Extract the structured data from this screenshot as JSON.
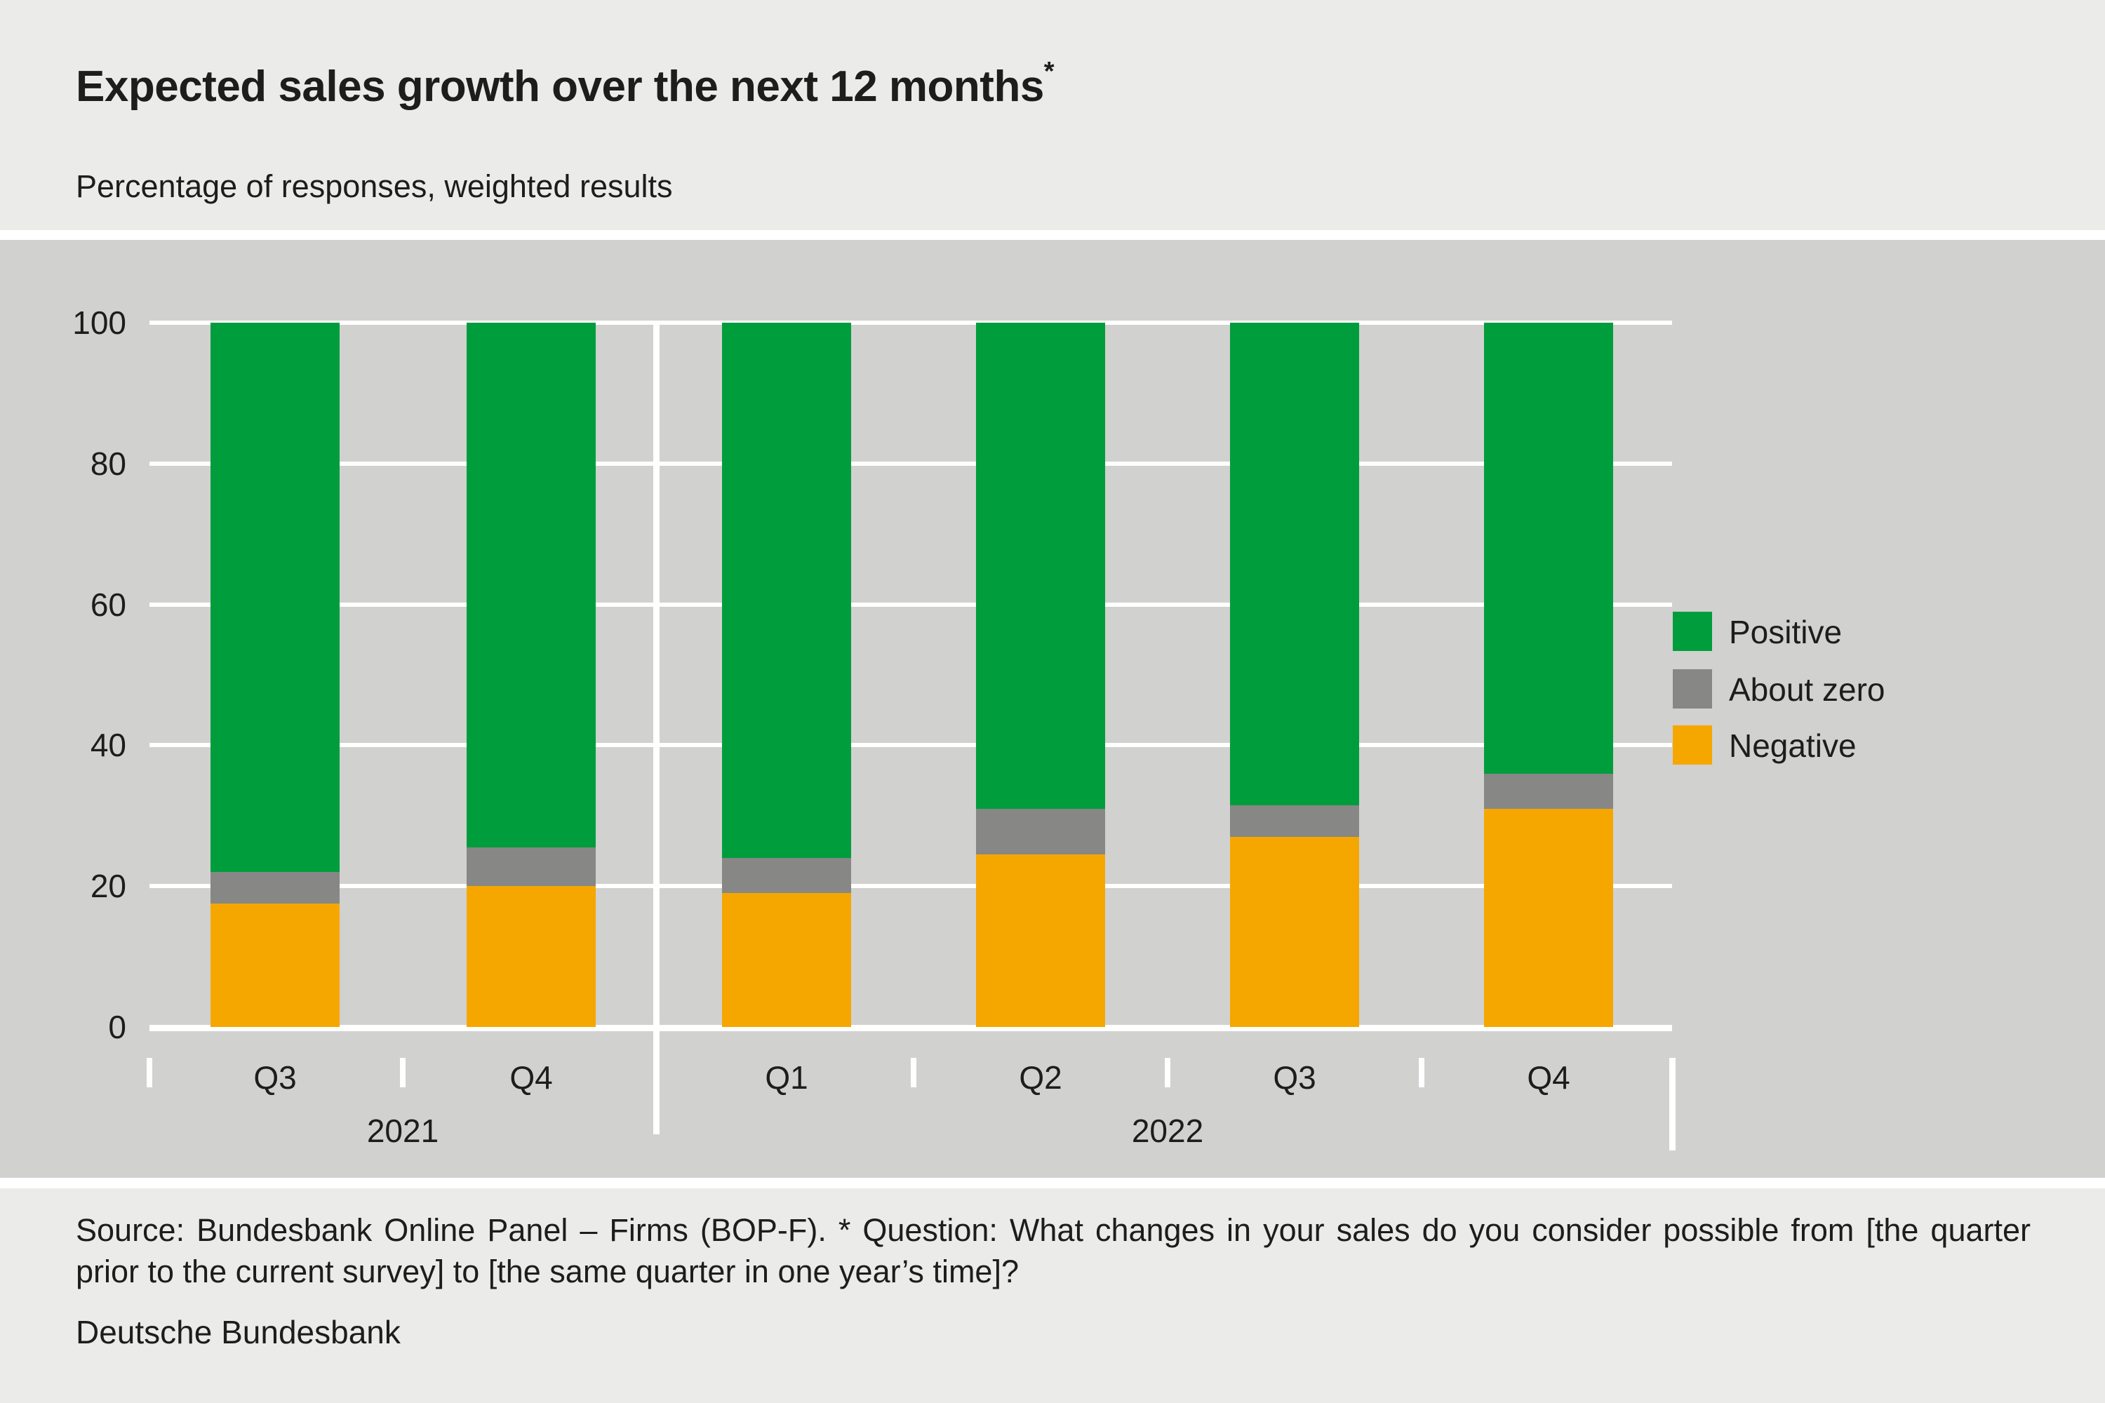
{
  "chart_data": {
    "type": "bar",
    "stacked": true,
    "unit": "percent",
    "title": "Expected sales growth over the next 12 months",
    "title_footnote_marker": "*",
    "subtitle": "Percentage of responses, weighted results",
    "categories": [
      "Q3 2021",
      "Q4 2021",
      "Q1 2022",
      "Q2 2022",
      "Q3 2022",
      "Q4 2022"
    ],
    "quarter_labels": [
      "Q3",
      "Q4",
      "Q1",
      "Q2",
      "Q3",
      "Q4"
    ],
    "year_groups": [
      {
        "label": "2021",
        "quarters": [
          "Q3",
          "Q4"
        ]
      },
      {
        "label": "2022",
        "quarters": [
          "Q1",
          "Q2",
          "Q3",
          "Q4"
        ]
      }
    ],
    "series": [
      {
        "name": "Positive",
        "color": "#009d3c",
        "values": [
          78,
          74.5,
          76,
          69,
          68.5,
          64
        ]
      },
      {
        "name": "About zero",
        "color": "#878786",
        "values": [
          4.5,
          5.5,
          5,
          6.5,
          4.5,
          5
        ]
      },
      {
        "name": "Negative",
        "color": "#f5a700",
        "values": [
          17.5,
          20,
          19,
          24.5,
          27,
          31
        ]
      }
    ],
    "ylim": [
      0,
      100
    ],
    "yticks": [
      0,
      20,
      40,
      60,
      80,
      100
    ],
    "grid": true,
    "legend_position": "middle-right",
    "legend": [
      "Positive",
      "About zero",
      "Negative"
    ]
  },
  "footer": {
    "source_note": "Source: Bundesbank Online Panel – Firms (BOP-F). * Question: What changes in your sales do you consider possible from [the quarter prior to the current survey] to [the same quarter in one year’s time]?",
    "publisher": "Deutsche Bundesbank"
  }
}
